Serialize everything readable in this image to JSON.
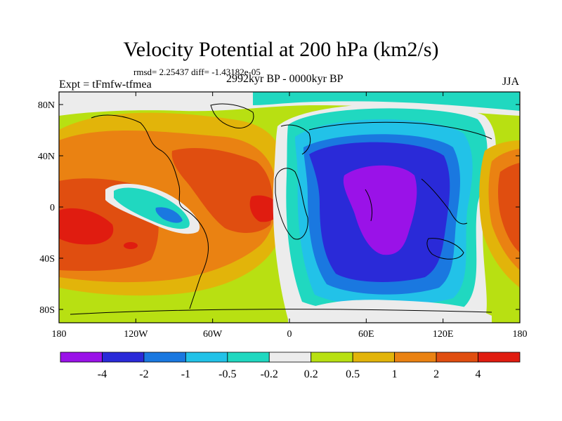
{
  "title": "Velocity Potential at 200 hPa (km2/s)",
  "stats": "rmsd= 2.25437 diff= -1.43182e-05",
  "left_label": "Expt = tFmfw-tfmea",
  "center_label": "2992kyr BP - 0000kyr BP",
  "right_label": "JJA",
  "axes": {
    "x_ticks": [
      "180",
      "120W",
      "60W",
      "0",
      "60E",
      "120E",
      "180"
    ],
    "y_ticks": [
      "80N",
      "40N",
      "0",
      "40S",
      "80S"
    ]
  },
  "colorbar": {
    "labels": [
      "-4",
      "-2",
      "-1",
      "-0.5",
      "-0.2",
      "0.2",
      "0.5",
      "1",
      "2",
      "4"
    ],
    "colors": [
      "#9a12e8",
      "#2a2ad8",
      "#1a78e0",
      "#22c2e8",
      "#20d8c0",
      "#ececec",
      "#b8e012",
      "#e2b40a",
      "#ea8212",
      "#e04e10",
      "#e01c10"
    ]
  },
  "colors": {
    "level_neg4": "#9a12e8",
    "level_neg2": "#2a2ad8",
    "level_neg1": "#1a78e0",
    "level_neg05": "#22c2e8",
    "level_neg02": "#20d8c0",
    "level_0": "#ececec",
    "level_02": "#b8e012",
    "level_05": "#e2b40a",
    "level_1": "#ea8212",
    "level_2": "#e04e10",
    "level_4": "#e01c10"
  }
}
